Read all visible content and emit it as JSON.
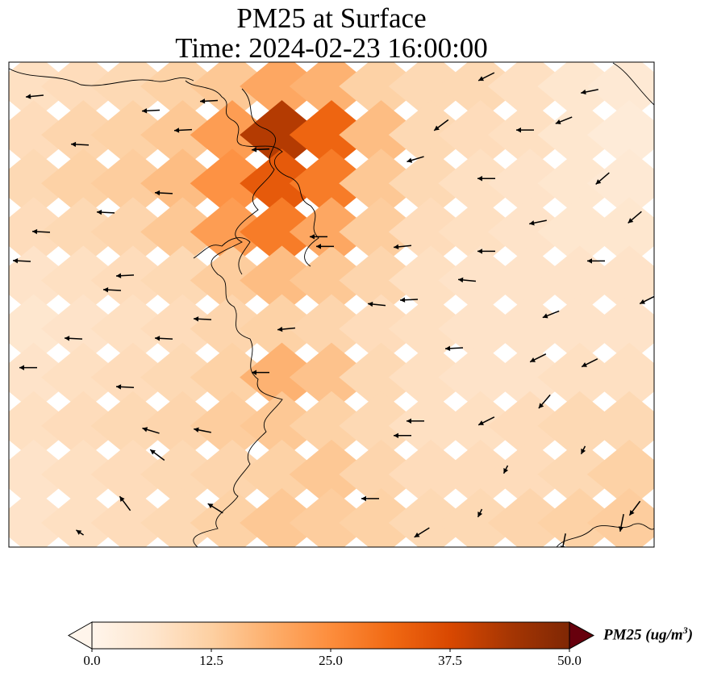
{
  "title": {
    "line1": "PM25 at Surface",
    "line2": "Time: 2024-02-23 16:00:00"
  },
  "colorbar": {
    "label": "PM25 (ug/m",
    "label_sup": "3",
    "label_close": ")",
    "ticks": [
      "0.0",
      "12.5",
      "25.0",
      "37.5",
      "50.0"
    ],
    "min": 0,
    "max": 50,
    "colormap": [
      "#fff5eb",
      "#fee6ce",
      "#fdd0a2",
      "#fdae6b",
      "#fd8d3c",
      "#f16913",
      "#d94801",
      "#a63603",
      "#7f2704"
    ],
    "extend": "both"
  },
  "chart_data": {
    "type": "heatmap",
    "title": "PM25 at Surface",
    "subtitle": "Time: 2024-02-23 16:00:00",
    "variable": "PM25",
    "units": "ug/m3",
    "value_range": [
      0,
      50
    ],
    "overlay": "wind vectors",
    "grid_rows": 10,
    "grid_cols": 13,
    "values": [
      [
        8,
        9,
        10,
        12,
        14,
        20,
        18,
        12,
        10,
        10,
        8,
        6,
        5
      ],
      [
        9,
        11,
        12,
        14,
        22,
        42,
        32,
        16,
        10,
        9,
        8,
        6,
        4
      ],
      [
        10,
        12,
        13,
        16,
        24,
        34,
        28,
        14,
        10,
        8,
        7,
        6,
        5
      ],
      [
        9,
        10,
        11,
        14,
        22,
        28,
        20,
        13,
        9,
        8,
        7,
        6,
        6
      ],
      [
        7,
        8,
        9,
        10,
        13,
        16,
        14,
        11,
        8,
        7,
        7,
        7,
        7
      ],
      [
        6,
        7,
        8,
        9,
        11,
        12,
        11,
        9,
        8,
        7,
        7,
        7,
        7
      ],
      [
        7,
        8,
        9,
        10,
        12,
        18,
        15,
        10,
        8,
        7,
        7,
        8,
        8
      ],
      [
        8,
        9,
        10,
        11,
        13,
        14,
        12,
        10,
        8,
        8,
        9,
        10,
        10
      ],
      [
        7,
        8,
        9,
        10,
        11,
        12,
        14,
        11,
        9,
        9,
        9,
        10,
        12
      ],
      [
        7,
        8,
        9,
        10,
        12,
        14,
        13,
        12,
        10,
        10,
        11,
        12,
        13
      ]
    ],
    "vectors": [
      {
        "x": 0.04,
        "y": 0.07,
        "u": -1.0,
        "v": 0.1
      },
      {
        "x": 0.22,
        "y": 0.1,
        "u": -1.0,
        "v": 0.05
      },
      {
        "x": 0.31,
        "y": 0.08,
        "u": -1.0,
        "v": 0.05
      },
      {
        "x": 0.27,
        "y": 0.14,
        "u": -1.0,
        "v": 0.05
      },
      {
        "x": 0.11,
        "y": 0.17,
        "u": -1.0,
        "v": -0.05
      },
      {
        "x": 0.39,
        "y": 0.18,
        "u": -1.0,
        "v": 0.05
      },
      {
        "x": 0.24,
        "y": 0.27,
        "u": -1.0,
        "v": -0.05
      },
      {
        "x": 0.15,
        "y": 0.31,
        "u": -1.0,
        "v": -0.05
      },
      {
        "x": 0.05,
        "y": 0.35,
        "u": -1.0,
        "v": -0.05
      },
      {
        "x": 0.02,
        "y": 0.41,
        "u": -1.0,
        "v": -0.05
      },
      {
        "x": 0.18,
        "y": 0.44,
        "u": -1.0,
        "v": 0.05
      },
      {
        "x": 0.16,
        "y": 0.47,
        "u": -1.0,
        "v": -0.05
      },
      {
        "x": 0.3,
        "y": 0.53,
        "u": -1.0,
        "v": -0.05
      },
      {
        "x": 0.1,
        "y": 0.57,
        "u": -1.0,
        "v": -0.05
      },
      {
        "x": 0.24,
        "y": 0.57,
        "u": -1.0,
        "v": -0.05
      },
      {
        "x": 0.03,
        "y": 0.63,
        "u": -1.0,
        "v": 0.0
      },
      {
        "x": 0.18,
        "y": 0.67,
        "u": -1.0,
        "v": -0.05
      },
      {
        "x": 0.39,
        "y": 0.64,
        "u": -1.0,
        "v": 0.0
      },
      {
        "x": 0.22,
        "y": 0.76,
        "u": -1.0,
        "v": -0.3
      },
      {
        "x": 0.3,
        "y": 0.76,
        "u": -1.0,
        "v": -0.2
      },
      {
        "x": 0.23,
        "y": 0.81,
        "u": -0.8,
        "v": -0.6
      },
      {
        "x": 0.18,
        "y": 0.91,
        "u": -0.6,
        "v": -0.8
      },
      {
        "x": 0.32,
        "y": 0.92,
        "u": -0.8,
        "v": -0.5
      },
      {
        "x": 0.11,
        "y": 0.97,
        "u": -0.6,
        "v": -0.4
      },
      {
        "x": 0.48,
        "y": 0.36,
        "u": -1.0,
        "v": 0.0
      },
      {
        "x": 0.49,
        "y": 0.38,
        "u": -1.0,
        "v": 0.0
      },
      {
        "x": 0.43,
        "y": 0.55,
        "u": -1.0,
        "v": 0.1
      },
      {
        "x": 0.57,
        "y": 0.5,
        "u": -1.0,
        "v": -0.1
      },
      {
        "x": 0.61,
        "y": 0.38,
        "u": -1.0,
        "v": 0.1
      },
      {
        "x": 0.62,
        "y": 0.49,
        "u": -1.0,
        "v": 0.05
      },
      {
        "x": 0.69,
        "y": 0.59,
        "u": -1.0,
        "v": 0.05
      },
      {
        "x": 0.71,
        "y": 0.45,
        "u": -1.0,
        "v": -0.1
      },
      {
        "x": 0.63,
        "y": 0.74,
        "u": -1.0,
        "v": 0.0
      },
      {
        "x": 0.61,
        "y": 0.77,
        "u": -1.0,
        "v": 0.0
      },
      {
        "x": 0.74,
        "y": 0.39,
        "u": -1.0,
        "v": 0.0
      },
      {
        "x": 0.82,
        "y": 0.33,
        "u": -1.0,
        "v": 0.2
      },
      {
        "x": 0.84,
        "y": 0.52,
        "u": -1.0,
        "v": 0.4
      },
      {
        "x": 0.82,
        "y": 0.61,
        "u": -1.0,
        "v": 0.5
      },
      {
        "x": 0.74,
        "y": 0.74,
        "u": -1.0,
        "v": 0.5
      },
      {
        "x": 0.9,
        "y": 0.62,
        "u": -1.0,
        "v": 0.5
      },
      {
        "x": 0.83,
        "y": 0.7,
        "u": -0.6,
        "v": 0.7
      },
      {
        "x": 0.89,
        "y": 0.8,
        "u": -0.4,
        "v": 0.8
      },
      {
        "x": 0.77,
        "y": 0.84,
        "u": -0.4,
        "v": 0.8
      },
      {
        "x": 0.73,
        "y": 0.93,
        "u": -0.4,
        "v": 0.8
      },
      {
        "x": 0.64,
        "y": 0.97,
        "u": -0.8,
        "v": 0.5
      },
      {
        "x": 0.97,
        "y": 0.32,
        "u": -0.7,
        "v": 0.6
      },
      {
        "x": 0.92,
        "y": 0.24,
        "u": -0.7,
        "v": 0.6
      },
      {
        "x": 0.86,
        "y": 0.12,
        "u": -1.0,
        "v": 0.4
      },
      {
        "x": 0.8,
        "y": 0.14,
        "u": -1.0,
        "v": 0.0
      },
      {
        "x": 0.74,
        "y": 0.24,
        "u": -1.0,
        "v": 0.0
      },
      {
        "x": 0.67,
        "y": 0.13,
        "u": -0.8,
        "v": 0.6
      },
      {
        "x": 0.63,
        "y": 0.2,
        "u": -1.0,
        "v": 0.3
      },
      {
        "x": 0.74,
        "y": 0.03,
        "u": -1.0,
        "v": 0.5
      },
      {
        "x": 0.9,
        "y": 0.06,
        "u": -1.0,
        "v": 0.2
      },
      {
        "x": 0.99,
        "y": 0.49,
        "u": -1.0,
        "v": 0.5
      },
      {
        "x": 0.97,
        "y": 0.92,
        "u": -0.6,
        "v": 0.8
      },
      {
        "x": 0.95,
        "y": 0.95,
        "u": -0.2,
        "v": 1.0
      },
      {
        "x": 0.86,
        "y": 0.99,
        "u": -0.2,
        "v": 1.0
      },
      {
        "x": 0.91,
        "y": 0.41,
        "u": -1.0,
        "v": 0.0
      },
      {
        "x": 0.56,
        "y": 0.9,
        "u": -1.0,
        "v": 0.0
      }
    ]
  }
}
